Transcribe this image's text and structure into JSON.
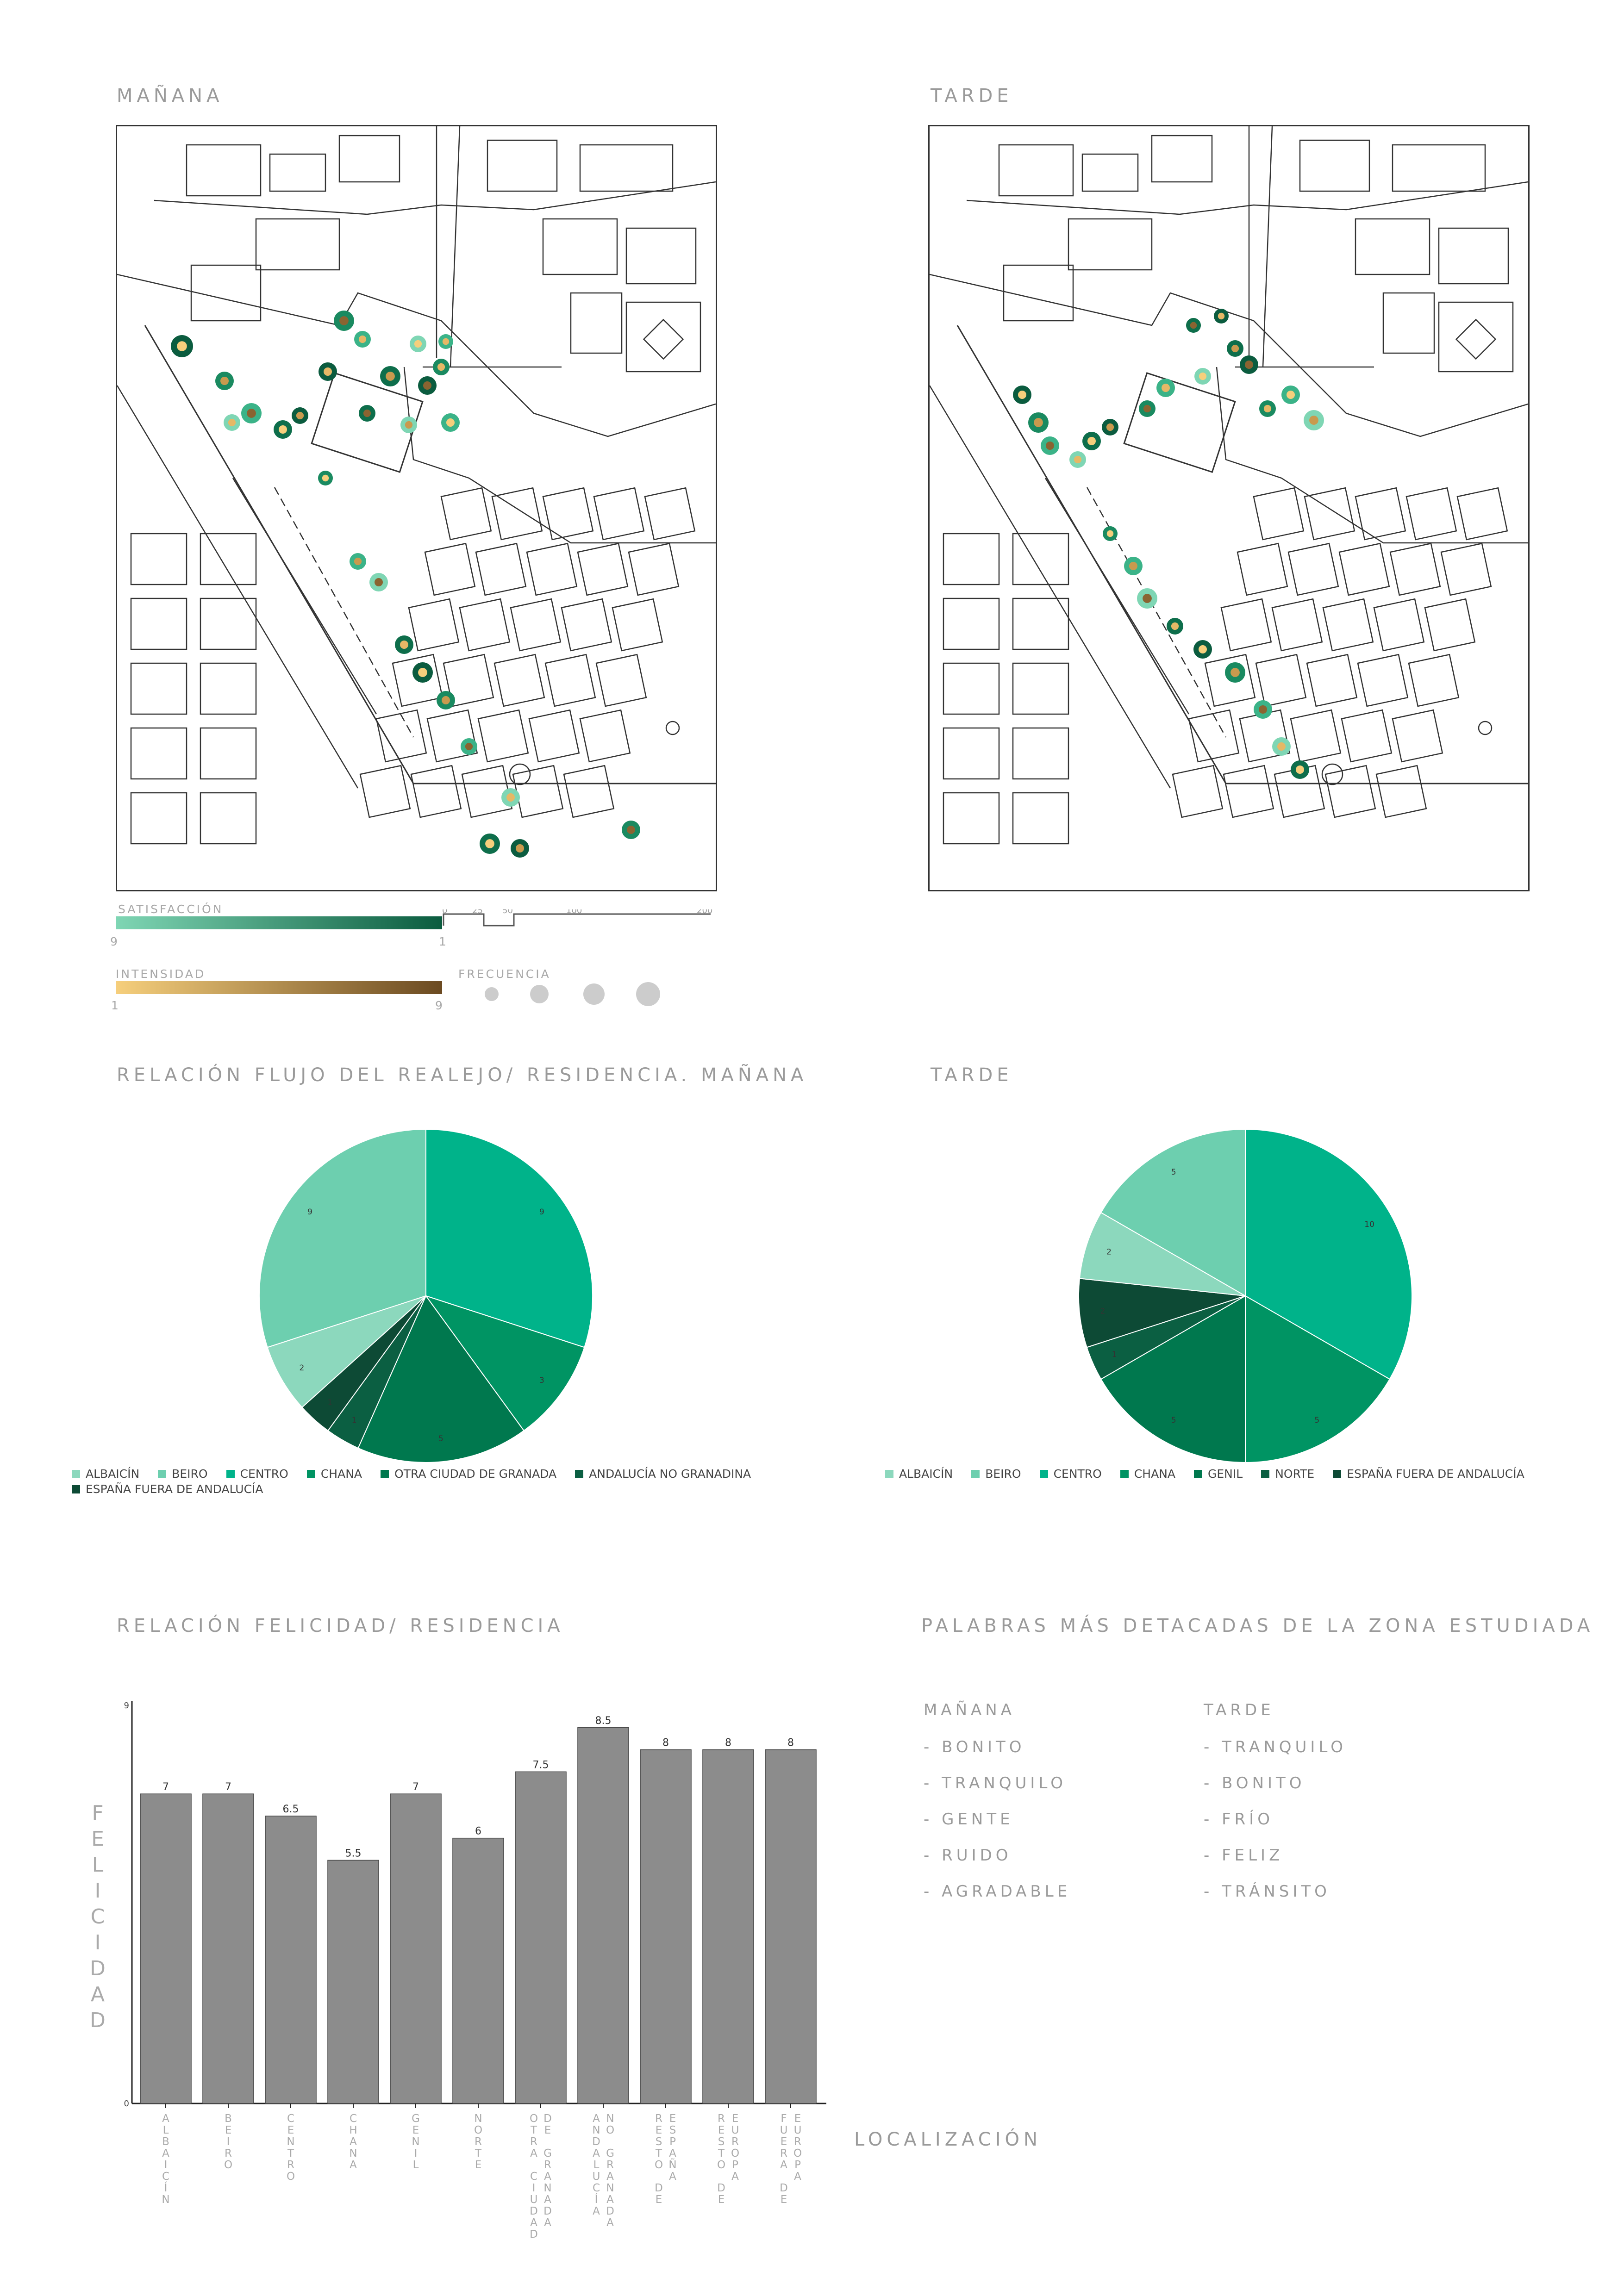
{
  "maps": {
    "morning_title": "MAÑANA",
    "afternoon_title": "TARDE",
    "legend": {
      "satisfaccion_label": "SATISFACCIÓN",
      "satisfaccion_min": "9",
      "satisfaccion_max": "1",
      "intensidad_label": "INTENSIDAD",
      "intensidad_min": "1",
      "intensidad_max": "9",
      "frecuencia_label": "FRECUENCIA",
      "scale_ticks": [
        "0",
        "25",
        "50",
        "100",
        "200"
      ],
      "colors": {
        "satisfaccion_start": "#7fd6b4",
        "satisfaccion_end": "#0b5c3f",
        "intensidad_start": "#f6cf7c",
        "intensidad_end": "#6b4a21",
        "frecuencia": "#cccccc"
      }
    }
  },
  "chart_data": [
    {
      "type": "pie",
      "title": "RELACIÓN FLUJO DEL REALEJO/ RESIDENCIA. MAÑANA",
      "slices": [
        {
          "label": "CENTRO",
          "value": 9,
          "color": "#00b38a"
        },
        {
          "label": "CHANA",
          "value": 3,
          "color": "#009463"
        },
        {
          "label": "OTRA CIUDAD DE GRANADA",
          "value": 5,
          "color": "#00784e"
        },
        {
          "label": "ANDALUCÍA NO GRANADINA",
          "value": 1,
          "color": "#0b5f42"
        },
        {
          "label": "ESPAÑA FUERA DE ANDALUCÍA",
          "value": 1,
          "color": "#0d4a35"
        },
        {
          "label": "ALBAICÍN",
          "value": 2,
          "color": "#8cd8bd"
        },
        {
          "label": "BEIRO",
          "value": 9,
          "color": "#6dcfaf"
        }
      ],
      "legend": [
        {
          "label": "ALBAICÍN",
          "color": "#8cd8bd"
        },
        {
          "label": "BEIRO",
          "color": "#6dcfaf"
        },
        {
          "label": "CENTRO",
          "color": "#00b38a"
        },
        {
          "label": "CHANA",
          "color": "#009463"
        },
        {
          "label": "OTRA CIUDAD DE GRANADA",
          "color": "#00784e"
        },
        {
          "label": "ANDALUCÍA NO GRANADINA",
          "color": "#0b5f42"
        },
        {
          "label": "ESPAÑA FUERA DE ANDALUCÍA",
          "color": "#0d4a35"
        }
      ]
    },
    {
      "type": "pie",
      "title": "TARDE",
      "slices": [
        {
          "label": "CENTRO",
          "value": 10,
          "color": "#00b38a"
        },
        {
          "label": "CHANA",
          "value": 5,
          "color": "#009463"
        },
        {
          "label": "GENIL",
          "value": 5,
          "color": "#00784e"
        },
        {
          "label": "NORTE",
          "value": 1,
          "color": "#0b5f42"
        },
        {
          "label": "ESPAÑA FUERA DE ANDALUCÍA",
          "value": 2,
          "color": "#0d4a35"
        },
        {
          "label": "ALBAICÍN",
          "value": 2,
          "color": "#8cd8bd"
        },
        {
          "label": "BEIRO",
          "value": 5,
          "color": "#6dcfaf"
        }
      ],
      "legend": [
        {
          "label": "ALBAICÍN",
          "color": "#8cd8bd"
        },
        {
          "label": "BEIRO",
          "color": "#6dcfaf"
        },
        {
          "label": "CENTRO",
          "color": "#00b38a"
        },
        {
          "label": "CHANA",
          "color": "#009463"
        },
        {
          "label": "GENIL",
          "color": "#00784e"
        },
        {
          "label": "NORTE",
          "color": "#0b5f42"
        },
        {
          "label": "ESPAÑA FUERA DE ANDALUCÍA",
          "color": "#0d4a35"
        }
      ]
    },
    {
      "type": "bar",
      "title": "RELACIÓN FELICIDAD/ RESIDENCIA",
      "categories": [
        "ALBAICÍN",
        "BEIRO",
        "CENTRO",
        "CHANA",
        "GENIL",
        "NORTE",
        "OTRA CIUDAD DE GRANADA",
        "ANDALUCÍA NO GRANADA",
        "RESTO DE ESPAÑA",
        "RESTO DE EUROPA",
        "FUERA DE EUROPA"
      ],
      "category_lines": [
        [
          "ALBAICÍN"
        ],
        [
          "BEIRO"
        ],
        [
          "CENTRO"
        ],
        [
          "CHANA"
        ],
        [
          "GENIL"
        ],
        [
          "NORTE"
        ],
        [
          "OTRA CIUDAD",
          "DE GRANADA"
        ],
        [
          "ANDALUCÍA",
          "NO GRANADA"
        ],
        [
          "RESTO DE",
          "ESPAÑA"
        ],
        [
          "RESTO DE",
          "EUROPA"
        ],
        [
          "FUERA DE",
          "EUROPA"
        ]
      ],
      "values": [
        7,
        7,
        6.5,
        5.5,
        7,
        6,
        7.5,
        8.5,
        8,
        8,
        8
      ],
      "value_labels": [
        "7",
        "7",
        "6.5",
        "5.5",
        "7",
        "6",
        "7.5",
        "8.5",
        "8",
        "8",
        "8"
      ],
      "ylim": [
        0,
        9
      ],
      "yticks": [
        "0",
        "9"
      ],
      "ylabel": "FELICIDAD",
      "xlabel": "LOCALIZACIÓN",
      "bar_color": "#8c8c8c"
    }
  ],
  "words": {
    "title": "PALABRAS MÁS DETACADAS DE LA ZONA ESTUDIADA",
    "morning_head": "MAÑANA",
    "afternoon_head": "TARDE",
    "morning": [
      "- BONITO",
      "- TRANQUILO",
      "- GENTE",
      "- RUIDO",
      "- AGRADABLE"
    ],
    "afternoon": [
      "- TRANQUILO",
      "- BONITO",
      "- FRÍO",
      "- FELIZ",
      "- TRÁNSITO"
    ]
  }
}
